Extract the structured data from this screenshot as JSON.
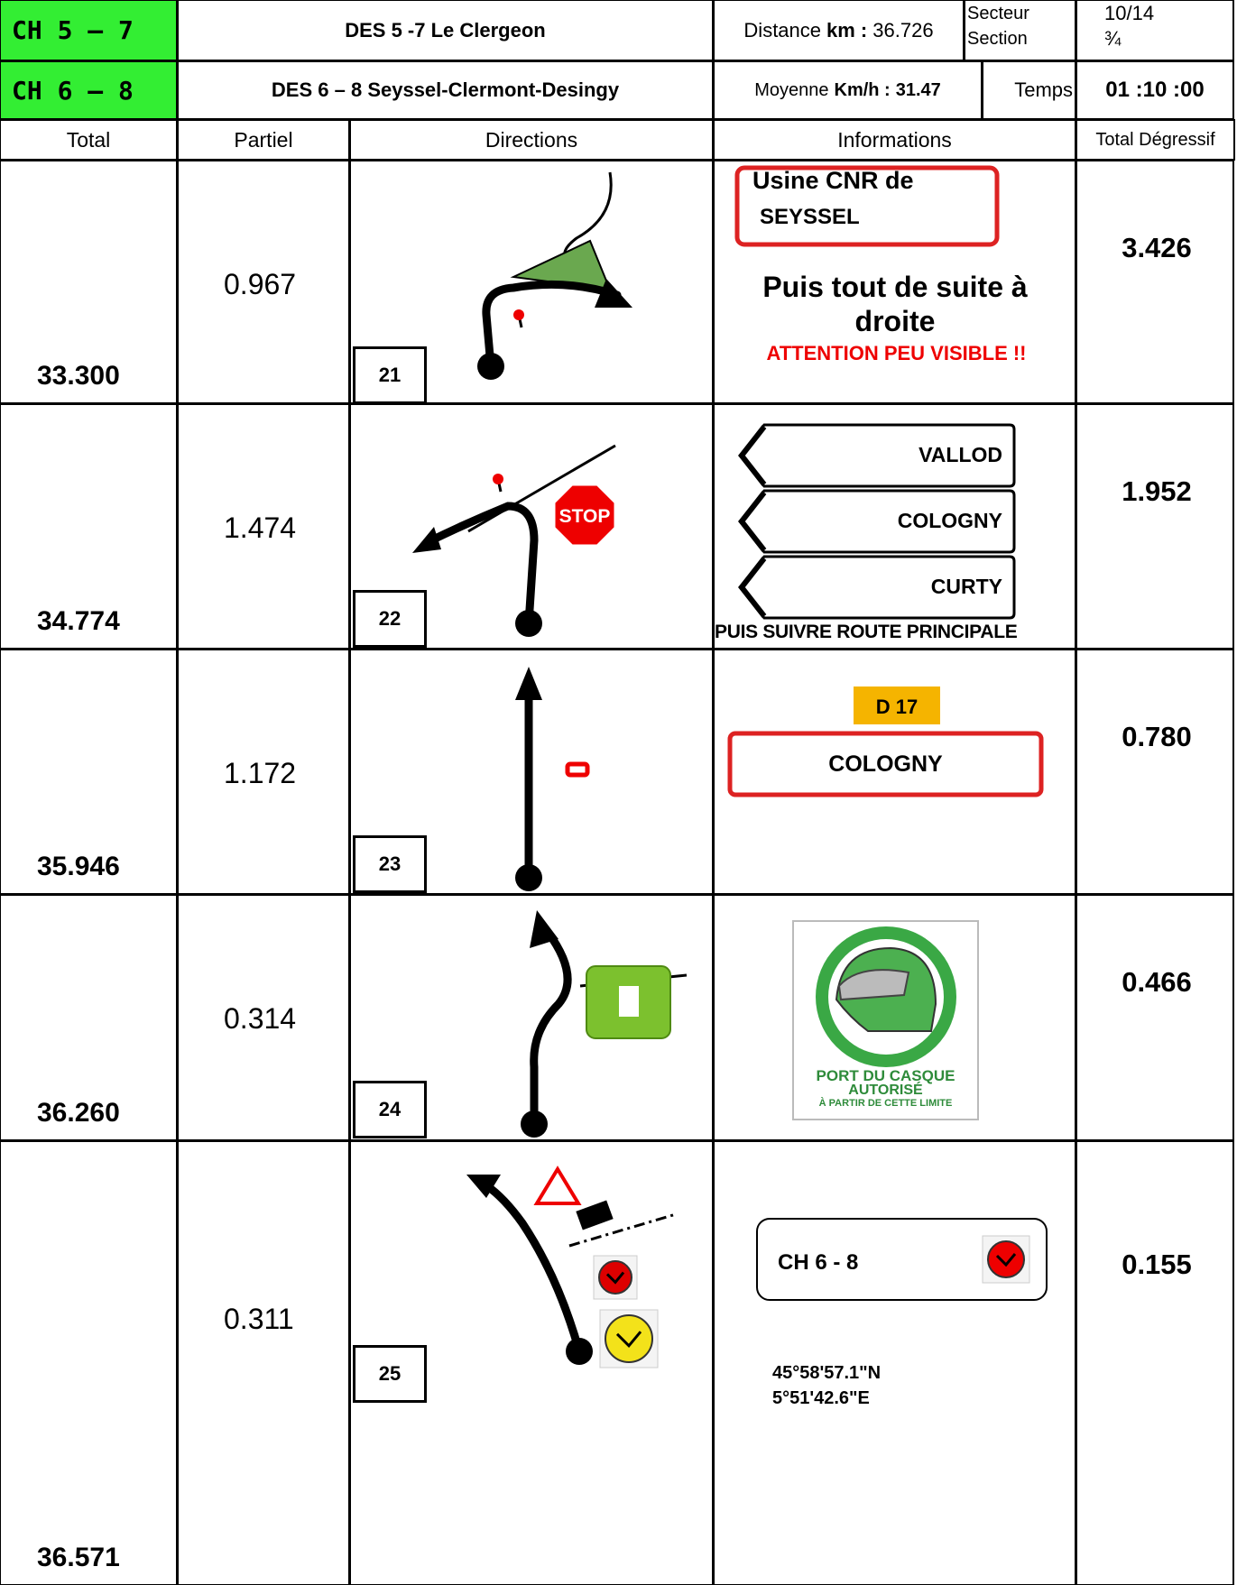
{
  "header": {
    "ch1": "CH  5 – 7",
    "stage1": "DES 5 -7  Le Clergeon",
    "distance_label": "Distance",
    "distance_unit": "km :",
    "distance_value": "36.726",
    "secteur": "Secteur",
    "section": "Section",
    "page": "10/14",
    "fraction": "¾",
    "ch2": "CH  6 – 8",
    "stage2": "DES 6 – 8 Seyssel-Clermont-Desingy",
    "moyenne_label": "Moyenne",
    "moyenne_unit": "Km/h :",
    "moyenne_value": "31.47",
    "temps_label": "Temps",
    "temps": "01 :10 :00"
  },
  "columns": [
    "Total",
    "Partiel",
    "Directions",
    "Informations",
    "Total Dégressif"
  ],
  "rows": [
    {
      "total": "33.300",
      "partiel": "0.967",
      "number": "21",
      "degressif": "3.426",
      "sign": [
        "Usine CNR de",
        "SEYSSEL"
      ],
      "text": "Puis tout de suite à droite",
      "warning": "ATTENTION PEU VISIBLE  !!"
    },
    {
      "total": "34.774",
      "partiel": "1.474",
      "number": "22",
      "degressif": "1.952",
      "stop": "STOP",
      "signs": [
        "VALLOD",
        "COLOGNY",
        "CURTY"
      ],
      "text": "PUIS SUIVRE ROUTE PRINCIPALE"
    },
    {
      "total": "35.946",
      "partiel": "1.172",
      "number": "23",
      "degressif": "0.780",
      "road": "D 17",
      "sign": "COLOGNY"
    },
    {
      "total": "36.260",
      "partiel": "0.314",
      "number": "24",
      "degressif": "0.466",
      "sign": [
        "PORT DU CASQUE",
        "AUTORISÉ",
        "À PARTIR DE CETTE LIMITE"
      ]
    },
    {
      "total": "36.571",
      "partiel": "0.311",
      "number": "25",
      "degressif": "0.155",
      "sign": "CH 6 - 8",
      "coords": [
        "45°58'57.1\"N",
        "5°51'42.6\"E"
      ]
    }
  ]
}
